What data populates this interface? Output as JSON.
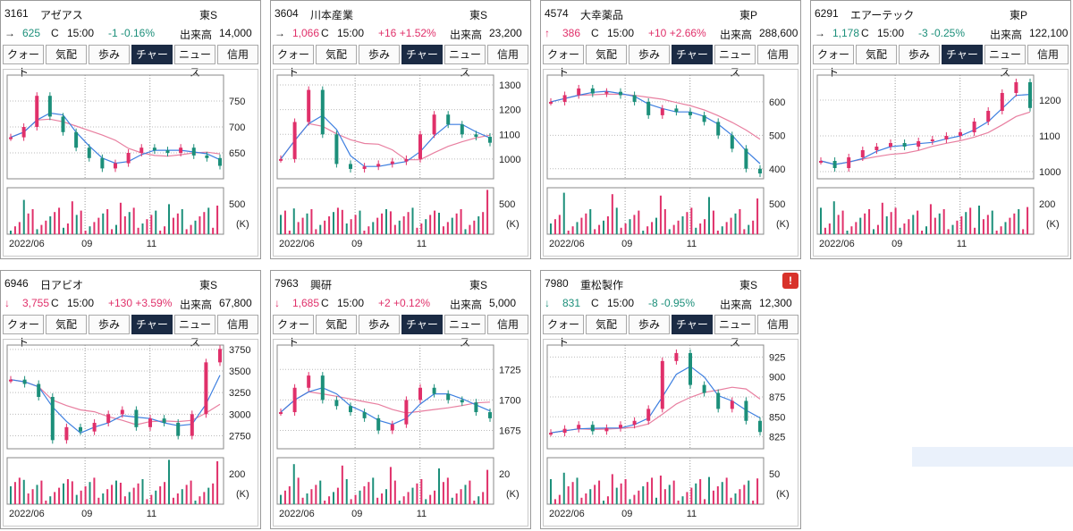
{
  "tabs": [
    "クォート",
    "気配",
    "歩み",
    "チャート",
    "ニュース",
    "信用"
  ],
  "active_tab": "チャート",
  "volume_label": "出来高",
  "market_close_flag": "C",
  "time_label": "15:00",
  "volume_unit": "(K)",
  "colors": {
    "up": "#e0306a",
    "down": "#1c8f7a",
    "ma_short": "#3d7fe0",
    "ma_long": "#e87fa0",
    "active_tab_bg": "#1b2b44"
  },
  "panels": [
    {
      "code": "3161",
      "name": "アゼアス",
      "market": "東S",
      "arrow": "→",
      "price": "625",
      "change": "-1 -0.16%",
      "direction": "down",
      "volume": "14,000",
      "warning": false,
      "price_ticks": [
        "750",
        "700",
        "650"
      ],
      "volume_ticks": [
        "500"
      ],
      "x_labels": [
        "2022/06",
        "09",
        "11"
      ],
      "chart_data": {
        "type": "line",
        "series": [
          {
            "values": [
              680,
              700,
              760,
              720,
              690,
              660,
              640,
              620,
              630,
              650,
              660,
              655,
              650,
              660,
              645,
              640,
              625
            ]
          }
        ],
        "ylim": [
          600,
          800
        ]
      }
    },
    {
      "code": "3604",
      "name": "川本産業",
      "market": "東S",
      "arrow": "→",
      "price": "1,066",
      "change": "+16 +1.52%",
      "direction": "up",
      "volume": "23,200",
      "warning": false,
      "price_ticks": [
        "1300",
        "1200",
        "1100",
        "1000"
      ],
      "volume_ticks": [
        "500"
      ],
      "x_labels": [
        "2022/06",
        "09",
        "11"
      ],
      "chart_data": {
        "type": "line",
        "series": [
          {
            "values": [
              1000,
              1150,
              1280,
              1100,
              980,
              960,
              970,
              980,
              990,
              1000,
              1100,
              1180,
              1140,
              1100,
              1090,
              1066
            ]
          }
        ],
        "ylim": [
          920,
          1340
        ]
      }
    },
    {
      "code": "4574",
      "name": "大幸薬品",
      "market": "東P",
      "arrow": "↑",
      "price": "386",
      "change": "+10 +2.66%",
      "direction": "up",
      "volume": "288,600",
      "warning": false,
      "price_ticks": [
        "600",
        "500",
        "400"
      ],
      "volume_ticks": [
        "500"
      ],
      "x_labels": [
        "2022/06",
        "09",
        "11"
      ],
      "chart_data": {
        "type": "line",
        "series": [
          {
            "values": [
              600,
              620,
              640,
              625,
              630,
              620,
              600,
              560,
              580,
              570,
              560,
              540,
              500,
              460,
              400,
              386
            ]
          }
        ],
        "ylim": [
          370,
          680
        ]
      }
    },
    {
      "code": "6291",
      "name": "エアーテック",
      "market": "東P",
      "arrow": "→",
      "price": "1,178",
      "change": "-3 -0.25%",
      "direction": "down",
      "volume": "122,100",
      "warning": false,
      "price_ticks": [
        "1200",
        "1100",
        "1000"
      ],
      "volume_ticks": [
        "200"
      ],
      "x_labels": [
        "2022/06",
        "09",
        "11"
      ],
      "chart_data": {
        "type": "line",
        "series": [
          {
            "values": [
              1030,
              1010,
              1040,
              1060,
              1070,
              1080,
              1070,
              1085,
              1090,
              1100,
              1110,
              1140,
              1170,
              1220,
              1250,
              1178
            ]
          }
        ],
        "ylim": [
          980,
          1270
        ]
      }
    },
    {
      "code": "6946",
      "name": "日アビオ",
      "market": "東S",
      "arrow": "↓",
      "price": "3,755",
      "change": "+130 +3.59%",
      "direction": "up",
      "volume": "67,800",
      "warning": false,
      "price_ticks": [
        "3750",
        "3500",
        "3250",
        "3000",
        "2750"
      ],
      "volume_ticks": [
        "200"
      ],
      "x_labels": [
        "2022/06",
        "09",
        "11"
      ],
      "chart_data": {
        "type": "line",
        "series": [
          {
            "values": [
              3400,
              3350,
              3200,
              2700,
              2850,
              2800,
              2900,
              3000,
              3050,
              2850,
              2950,
              2900,
              2750,
              3000,
              3600,
              3755
            ]
          }
        ],
        "ylim": [
          2600,
          3800
        ]
      }
    },
    {
      "code": "7963",
      "name": "興研",
      "market": "東S",
      "arrow": "↓",
      "price": "1,685",
      "change": "+2 +0.12%",
      "direction": "up",
      "volume": "5,000",
      "warning": false,
      "price_ticks": [
        "1725",
        "1700",
        "1675"
      ],
      "volume_ticks": [
        "20"
      ],
      "x_labels": [
        "2022/06",
        "09",
        "11"
      ],
      "chart_data": {
        "type": "line",
        "series": [
          {
            "values": [
              1690,
              1710,
              1720,
              1700,
              1695,
              1690,
              1685,
              1675,
              1680,
              1700,
              1710,
              1705,
              1700,
              1698,
              1690,
              1685
            ]
          }
        ],
        "ylim": [
          1660,
          1745
        ]
      }
    },
    {
      "code": "7980",
      "name": "重松製作",
      "market": "東S",
      "arrow": "↓",
      "price": "831",
      "change": "-8 -0.95%",
      "direction": "down",
      "volume": "12,300",
      "warning": true,
      "price_ticks": [
        "925",
        "900",
        "875",
        "850",
        "825"
      ],
      "volume_ticks": [
        "50"
      ],
      "x_labels": [
        "2022/06",
        "09",
        "11"
      ],
      "chart_data": {
        "type": "line",
        "series": [
          {
            "values": [
              830,
              835,
              840,
              832,
              836,
              840,
              845,
              860,
              920,
              930,
              890,
              880,
              860,
              870,
              845,
              831
            ]
          }
        ],
        "ylim": [
          810,
          940
        ]
      }
    }
  ]
}
